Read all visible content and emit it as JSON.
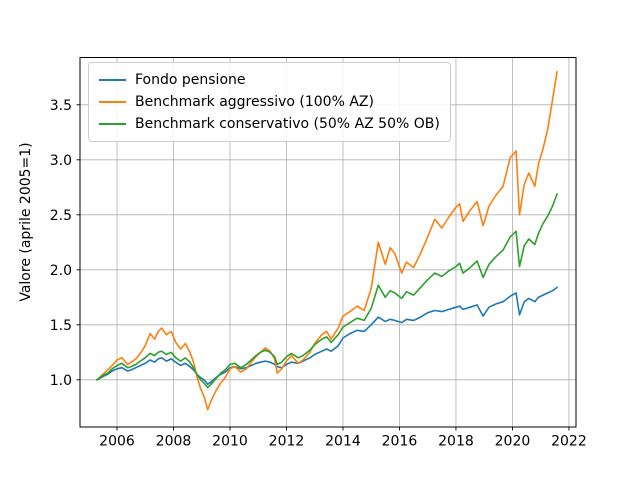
{
  "figure": {
    "background": "#ffffff"
  },
  "chart_data": {
    "type": "line",
    "title": "",
    "xlabel": "",
    "ylabel": "Valore (aprile 2005=1)",
    "xlim": [
      2004.69,
      2022.25
    ],
    "ylim": [
      0.571,
      3.93
    ],
    "grid": true,
    "grid_color": "#b0b0b0",
    "axes_color": "#000000",
    "background_color": "#ffffff",
    "legend": {
      "location": "upper-left",
      "border_color": "#cccccc"
    },
    "xticks": {
      "values": [
        2006,
        2008,
        2010,
        2012,
        2014,
        2016,
        2018,
        2020,
        2022
      ],
      "labels": [
        "2006",
        "2008",
        "2010",
        "2012",
        "2014",
        "2016",
        "2018",
        "2020",
        "2022"
      ]
    },
    "yticks": {
      "values": [
        1.0,
        1.5,
        2.0,
        2.5,
        3.0,
        3.5
      ],
      "labels": [
        "1.0",
        "1.5",
        "2.0",
        "2.5",
        "3.0",
        "3.5"
      ]
    },
    "x": [
      2005.29,
      2005.5,
      2005.67,
      2005.83,
      2006.0,
      2006.17,
      2006.38,
      2006.5,
      2006.67,
      2006.83,
      2007.0,
      2007.17,
      2007.33,
      2007.46,
      2007.58,
      2007.75,
      2007.92,
      2008.08,
      2008.25,
      2008.42,
      2008.58,
      2008.71,
      2008.83,
      2008.96,
      2009.08,
      2009.21,
      2009.33,
      2009.5,
      2009.67,
      2009.83,
      2010.0,
      2010.17,
      2010.38,
      2010.58,
      2010.75,
      2010.92,
      2011.08,
      2011.25,
      2011.42,
      2011.58,
      2011.67,
      2011.83,
      2012.0,
      2012.17,
      2012.42,
      2012.58,
      2012.83,
      2013.0,
      2013.25,
      2013.42,
      2013.58,
      2013.83,
      2014.0,
      2014.25,
      2014.5,
      2014.75,
      2015.0,
      2015.25,
      2015.5,
      2015.67,
      2015.83,
      2016.08,
      2016.25,
      2016.5,
      2016.75,
      2017.0,
      2017.25,
      2017.5,
      2017.75,
      2018.0,
      2018.13,
      2018.25,
      2018.5,
      2018.75,
      2018.96,
      2019.17,
      2019.42,
      2019.67,
      2019.92,
      2020.13,
      2020.25,
      2020.42,
      2020.58,
      2020.79,
      2020.92,
      2021.08,
      2021.25,
      2021.42,
      2021.58
    ],
    "series": [
      {
        "label": "Fondo pensione",
        "color": "#1f77b4",
        "values": [
          1.0,
          1.03,
          1.05,
          1.08,
          1.1,
          1.11,
          1.08,
          1.09,
          1.11,
          1.13,
          1.15,
          1.18,
          1.16,
          1.19,
          1.2,
          1.17,
          1.19,
          1.16,
          1.13,
          1.15,
          1.12,
          1.09,
          1.05,
          1.02,
          1.0,
          0.96,
          0.98,
          1.02,
          1.05,
          1.07,
          1.11,
          1.12,
          1.1,
          1.11,
          1.13,
          1.15,
          1.16,
          1.17,
          1.16,
          1.14,
          1.12,
          1.11,
          1.14,
          1.16,
          1.15,
          1.17,
          1.2,
          1.23,
          1.26,
          1.28,
          1.26,
          1.31,
          1.38,
          1.42,
          1.45,
          1.44,
          1.5,
          1.57,
          1.53,
          1.55,
          1.54,
          1.52,
          1.55,
          1.54,
          1.57,
          1.61,
          1.63,
          1.62,
          1.64,
          1.66,
          1.67,
          1.64,
          1.66,
          1.68,
          1.58,
          1.66,
          1.69,
          1.71,
          1.76,
          1.79,
          1.59,
          1.71,
          1.74,
          1.71,
          1.75,
          1.77,
          1.79,
          1.81,
          1.84
        ]
      },
      {
        "label": "Benchmark aggressivo (100% AZ)",
        "color": "#ff7f0e",
        "values": [
          1.0,
          1.05,
          1.09,
          1.13,
          1.18,
          1.2,
          1.14,
          1.16,
          1.19,
          1.24,
          1.31,
          1.42,
          1.37,
          1.44,
          1.47,
          1.41,
          1.44,
          1.34,
          1.28,
          1.33,
          1.25,
          1.16,
          1.03,
          0.92,
          0.85,
          0.73,
          0.81,
          0.9,
          0.97,
          1.02,
          1.1,
          1.12,
          1.07,
          1.1,
          1.16,
          1.21,
          1.25,
          1.29,
          1.26,
          1.19,
          1.06,
          1.1,
          1.17,
          1.22,
          1.15,
          1.18,
          1.25,
          1.33,
          1.41,
          1.44,
          1.37,
          1.47,
          1.58,
          1.62,
          1.67,
          1.63,
          1.83,
          2.25,
          2.05,
          2.2,
          2.15,
          1.97,
          2.07,
          2.02,
          2.15,
          2.3,
          2.46,
          2.38,
          2.48,
          2.57,
          2.6,
          2.44,
          2.54,
          2.62,
          2.4,
          2.58,
          2.68,
          2.76,
          3.02,
          3.08,
          2.5,
          2.78,
          2.88,
          2.76,
          2.96,
          3.1,
          3.28,
          3.55,
          3.8
        ]
      },
      {
        "label": "Benchmark conservativo (50% AZ 50% OB)",
        "color": "#2ca02c",
        "values": [
          1.0,
          1.04,
          1.06,
          1.1,
          1.13,
          1.15,
          1.11,
          1.12,
          1.14,
          1.17,
          1.2,
          1.24,
          1.22,
          1.25,
          1.26,
          1.23,
          1.25,
          1.2,
          1.17,
          1.2,
          1.16,
          1.11,
          1.05,
          1.0,
          0.97,
          0.93,
          0.96,
          1.01,
          1.06,
          1.09,
          1.14,
          1.15,
          1.11,
          1.14,
          1.18,
          1.22,
          1.25,
          1.27,
          1.25,
          1.21,
          1.14,
          1.16,
          1.21,
          1.24,
          1.2,
          1.22,
          1.27,
          1.32,
          1.37,
          1.39,
          1.34,
          1.41,
          1.48,
          1.52,
          1.56,
          1.54,
          1.65,
          1.86,
          1.75,
          1.81,
          1.79,
          1.74,
          1.8,
          1.77,
          1.84,
          1.91,
          1.97,
          1.94,
          1.99,
          2.03,
          2.06,
          1.97,
          2.02,
          2.08,
          1.93,
          2.05,
          2.12,
          2.18,
          2.3,
          2.35,
          2.03,
          2.22,
          2.28,
          2.23,
          2.33,
          2.42,
          2.49,
          2.58,
          2.69
        ]
      }
    ]
  }
}
